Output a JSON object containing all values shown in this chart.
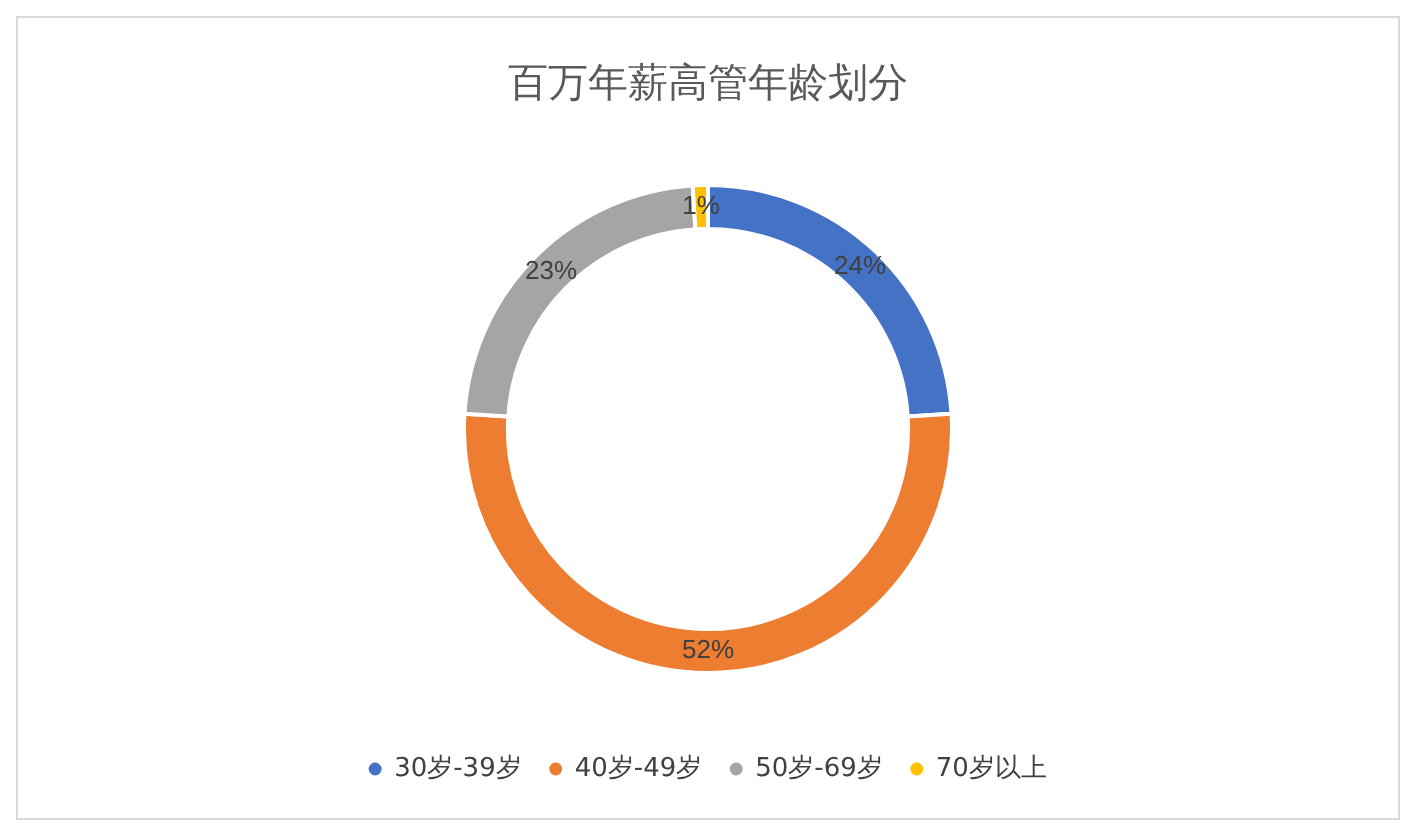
{
  "chart_data": {
    "type": "donut",
    "title": "百万年薪高管年龄划分",
    "categories": [
      "30岁-39岁",
      "40岁-49岁",
      "50岁-69岁",
      "70岁以上"
    ],
    "values": [
      24,
      52,
      23,
      1
    ],
    "value_labels": [
      "24%",
      "52%",
      "23%",
      "1%"
    ],
    "colors": [
      "#4472c4",
      "#ed7d31",
      "#a5a5a5",
      "#ffc000"
    ],
    "legend": "bottom"
  }
}
